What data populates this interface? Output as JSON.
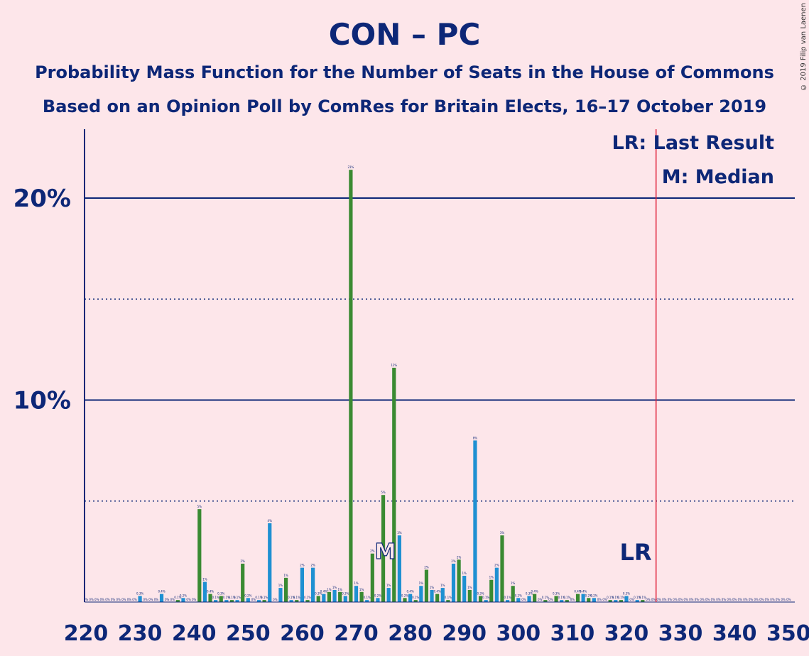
{
  "title": "CON – PC",
  "subtitle1": "Probability Mass Function for the Number of Seats in the House of Commons",
  "subtitle2": "Based on an Opinion Poll by ComRes for Britain Elects, 16–17 October 2019",
  "copyright": "© 2019 Filip van Laenen",
  "legend": {
    "last_result": "LR: Last Result",
    "median": "M: Median"
  },
  "lr_label": "LR",
  "m_label": "M",
  "colors": {
    "background": "#fde6ea",
    "text": "#0d2777",
    "green": "#3a8a32",
    "blue": "#1e90d2",
    "lr_line": "#e0203a"
  },
  "chart_data": {
    "type": "bar",
    "xlim": [
      220,
      350
    ],
    "ylim": [
      0,
      23
    ],
    "y_ticks": [
      {
        "value": 10,
        "label": "10%"
      },
      {
        "value": 20,
        "label": "20%"
      }
    ],
    "x_ticks": [
      220,
      230,
      240,
      250,
      260,
      270,
      280,
      290,
      300,
      310,
      320,
      330,
      340,
      350
    ],
    "last_result": 326,
    "median": 275,
    "values": [
      [
        220,
        0
      ],
      [
        221,
        0
      ],
      [
        222,
        0
      ],
      [
        223,
        0
      ],
      [
        224,
        0
      ],
      [
        225,
        0
      ],
      [
        226,
        0
      ],
      [
        227,
        0
      ],
      [
        228,
        0
      ],
      [
        229,
        0
      ],
      [
        230,
        0.3
      ],
      [
        231,
        0
      ],
      [
        232,
        0
      ],
      [
        233,
        0
      ],
      [
        234,
        0.4
      ],
      [
        235,
        0
      ],
      [
        236,
        0
      ],
      [
        237,
        0.1
      ],
      [
        238,
        0.2
      ],
      [
        239,
        0
      ],
      [
        240,
        0
      ],
      [
        241,
        4.6
      ],
      [
        242,
        1.0
      ],
      [
        243,
        0.4
      ],
      [
        244,
        0.1
      ],
      [
        245,
        0.3
      ],
      [
        246,
        0.1
      ],
      [
        247,
        0.1
      ],
      [
        248,
        0.1
      ],
      [
        249,
        1.9
      ],
      [
        250,
        0.2
      ],
      [
        251,
        0
      ],
      [
        252,
        0.1
      ],
      [
        253,
        0.1
      ],
      [
        254,
        3.9
      ],
      [
        255,
        0
      ],
      [
        256,
        0.7
      ],
      [
        257,
        1.2
      ],
      [
        258,
        0.1
      ],
      [
        259,
        0.1
      ],
      [
        260,
        1.7
      ],
      [
        261,
        0.1
      ],
      [
        262,
        1.7
      ],
      [
        263,
        0.3
      ],
      [
        264,
        0.4
      ],
      [
        265,
        0.5
      ],
      [
        266,
        0.6
      ],
      [
        267,
        0.5
      ],
      [
        268,
        0.3
      ],
      [
        269,
        21.4
      ],
      [
        270,
        0.8
      ],
      [
        271,
        0.5
      ],
      [
        272,
        0.1
      ],
      [
        273,
        2.4
      ],
      [
        274,
        0.2
      ],
      [
        275,
        5.3
      ],
      [
        276,
        0.7
      ],
      [
        277,
        11.6
      ],
      [
        278,
        3.3
      ],
      [
        279,
        0.2
      ],
      [
        280,
        0.4
      ],
      [
        281,
        0.1
      ],
      [
        282,
        0.8
      ],
      [
        283,
        1.6
      ],
      [
        284,
        0.6
      ],
      [
        285,
        0.4
      ],
      [
        286,
        0.7
      ],
      [
        287,
        0.1
      ],
      [
        288,
        1.9
      ],
      [
        289,
        2.1
      ],
      [
        290,
        1.3
      ],
      [
        291,
        0.6
      ],
      [
        292,
        8.0
      ],
      [
        293,
        0.3
      ],
      [
        294,
        0.1
      ],
      [
        295,
        1.1
      ],
      [
        296,
        1.7
      ],
      [
        297,
        3.3
      ],
      [
        298,
        0.1
      ],
      [
        299,
        0.8
      ],
      [
        300,
        0.2
      ],
      [
        301,
        0
      ],
      [
        302,
        0.3
      ],
      [
        303,
        0.4
      ],
      [
        304,
        0
      ],
      [
        305,
        0.1
      ],
      [
        306,
        0
      ],
      [
        307,
        0.3
      ],
      [
        308,
        0.1
      ],
      [
        309,
        0.1
      ],
      [
        310,
        0
      ],
      [
        311,
        0.4
      ],
      [
        312,
        0.4
      ],
      [
        313,
        0.2
      ],
      [
        314,
        0.2
      ],
      [
        315,
        0
      ],
      [
        316,
        0
      ],
      [
        317,
        0.1
      ],
      [
        318,
        0.1
      ],
      [
        319,
        0.1
      ],
      [
        320,
        0.3
      ],
      [
        321,
        0
      ],
      [
        322,
        0.1
      ],
      [
        323,
        0.1
      ],
      [
        324,
        0
      ],
      [
        325,
        0
      ],
      [
        326,
        0
      ],
      [
        327,
        0
      ],
      [
        328,
        0
      ],
      [
        329,
        0
      ],
      [
        330,
        0
      ],
      [
        331,
        0
      ],
      [
        332,
        0
      ],
      [
        333,
        0
      ],
      [
        334,
        0
      ],
      [
        335,
        0
      ],
      [
        336,
        0
      ],
      [
        337,
        0
      ],
      [
        338,
        0
      ],
      [
        339,
        0
      ],
      [
        340,
        0
      ],
      [
        341,
        0
      ],
      [
        342,
        0
      ],
      [
        343,
        0
      ],
      [
        344,
        0
      ],
      [
        345,
        0
      ],
      [
        346,
        0
      ],
      [
        347,
        0
      ],
      [
        348,
        0
      ],
      [
        349,
        0
      ],
      [
        350,
        0
      ]
    ]
  }
}
